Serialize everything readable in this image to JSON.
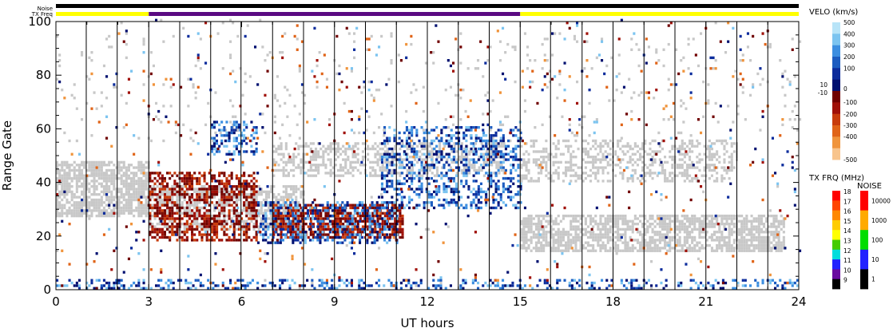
{
  "header": {
    "noise_label": "Noise",
    "txfreq_label": "TX Freq",
    "noise_color": "#000000",
    "txfreq_segments": [
      {
        "from": 0,
        "to": 3,
        "color": "#ffff00"
      },
      {
        "from": 3,
        "to": 15,
        "color": "#5a0a82"
      },
      {
        "from": 15,
        "to": 24,
        "color": "#ffff00"
      }
    ]
  },
  "chart_data": {
    "type": "heatmap",
    "xlabel": "UT hours",
    "ylabel": "Range Gate",
    "xlim": [
      0,
      24
    ],
    "ylim": [
      0,
      100
    ],
    "x_ticks": [
      0,
      3,
      6,
      9,
      12,
      15,
      18,
      21,
      24
    ],
    "y_ticks": [
      0,
      20,
      40,
      60,
      80,
      100
    ],
    "scan_boundaries": [
      0.98,
      1.98,
      3.0,
      4.0,
      5.0,
      5.98,
      7.0,
      8.0,
      9.0,
      10.0,
      11.0,
      12.0,
      13.0,
      14.0,
      15.0,
      15.98,
      17.0,
      18.0,
      19.0,
      20.0,
      21.0,
      22.0,
      23.0
    ],
    "ground_scatter_color": "#c8c8c8",
    "echo_regions": [
      {
        "name": "ground-scatter",
        "from_h": 0.0,
        "to_h": 3.0,
        "gate_lo": 27,
        "gate_hi": 47,
        "density": 0.75
      },
      {
        "name": "ground-scatter",
        "from_h": 3.0,
        "to_h": 8.0,
        "gate_lo": 22,
        "gate_hi": 38,
        "density": 0.55
      },
      {
        "name": "ground-scatter",
        "from_h": 7.0,
        "to_h": 14.5,
        "gate_lo": 42,
        "gate_hi": 54,
        "density": 0.45
      },
      {
        "name": "ground-scatter",
        "from_h": 15.0,
        "to_h": 23.5,
        "gate_lo": 14,
        "gate_hi": 27,
        "density": 0.7
      },
      {
        "name": "ground-scatter",
        "from_h": 15.0,
        "to_h": 22.0,
        "gate_lo": 40,
        "gate_hi": 55,
        "density": 0.4
      },
      {
        "name": "ground-scatter",
        "from_h": 0.0,
        "to_h": 24.0,
        "gate_lo": 55,
        "gate_hi": 95,
        "density": 0.03
      },
      {
        "name": "negative-velocity",
        "from_h": 3.0,
        "to_h": 6.5,
        "gate_lo": 18,
        "gate_hi": 43,
        "density": 0.55
      },
      {
        "name": "negative-velocity",
        "from_h": 7.0,
        "to_h": 11.2,
        "gate_lo": 19,
        "gate_hi": 31,
        "density": 0.75
      },
      {
        "name": "positive-velocity",
        "from_h": 6.5,
        "to_h": 11.0,
        "gate_lo": 17,
        "gate_hi": 32,
        "density": 0.35
      },
      {
        "name": "positive-velocity",
        "from_h": 10.5,
        "to_h": 15.0,
        "gate_lo": 30,
        "gate_hi": 60,
        "density": 0.4
      },
      {
        "name": "positive-velocity",
        "from_h": 5.0,
        "to_h": 6.5,
        "gate_lo": 50,
        "gate_hi": 62,
        "density": 0.45
      },
      {
        "name": "positive-velocity",
        "from_h": 0.0,
        "to_h": 24.0,
        "gate_lo": 0,
        "gate_hi": 3,
        "density": 0.3
      },
      {
        "name": "random",
        "from_h": 0.0,
        "to_h": 24.0,
        "gate_lo": 0,
        "gate_hi": 100,
        "density": 0.025
      }
    ]
  },
  "velocity_legend": {
    "title": "VELO (km/s)",
    "ticks": [
      "500",
      "400",
      "300",
      "200",
      "100",
      "10",
      "0",
      "-10",
      "-100",
      "-200",
      "-300",
      "-400",
      "-500"
    ],
    "colors": [
      "#b8e4f8",
      "#7cc4f0",
      "#3c8ee0",
      "#1c5cc0",
      "#0c2c9c",
      "#001070",
      "#700000",
      "#a01008",
      "#c83c0c",
      "#e06418",
      "#f0943c",
      "#f8c48c"
    ]
  },
  "txfreq_legend": {
    "title": "TX FRQ (MHz)",
    "ticks": [
      "18",
      "17",
      "16",
      "15",
      "14",
      "13",
      "12",
      "11",
      "10",
      "9"
    ],
    "colors": [
      "#ff0000",
      "#ff4400",
      "#ff8800",
      "#ffcc00",
      "#ffff00",
      "#44cc00",
      "#00dddd",
      "#2222ff",
      "#6a0aa0",
      "#000000"
    ]
  },
  "noise_legend": {
    "title": "NOISE",
    "ticks": [
      "10000",
      "1000",
      "100",
      "10",
      "1"
    ],
    "colors": [
      "#ff0000",
      "#ffaa00",
      "#00dd00",
      "#2222ff",
      "#000000"
    ]
  }
}
